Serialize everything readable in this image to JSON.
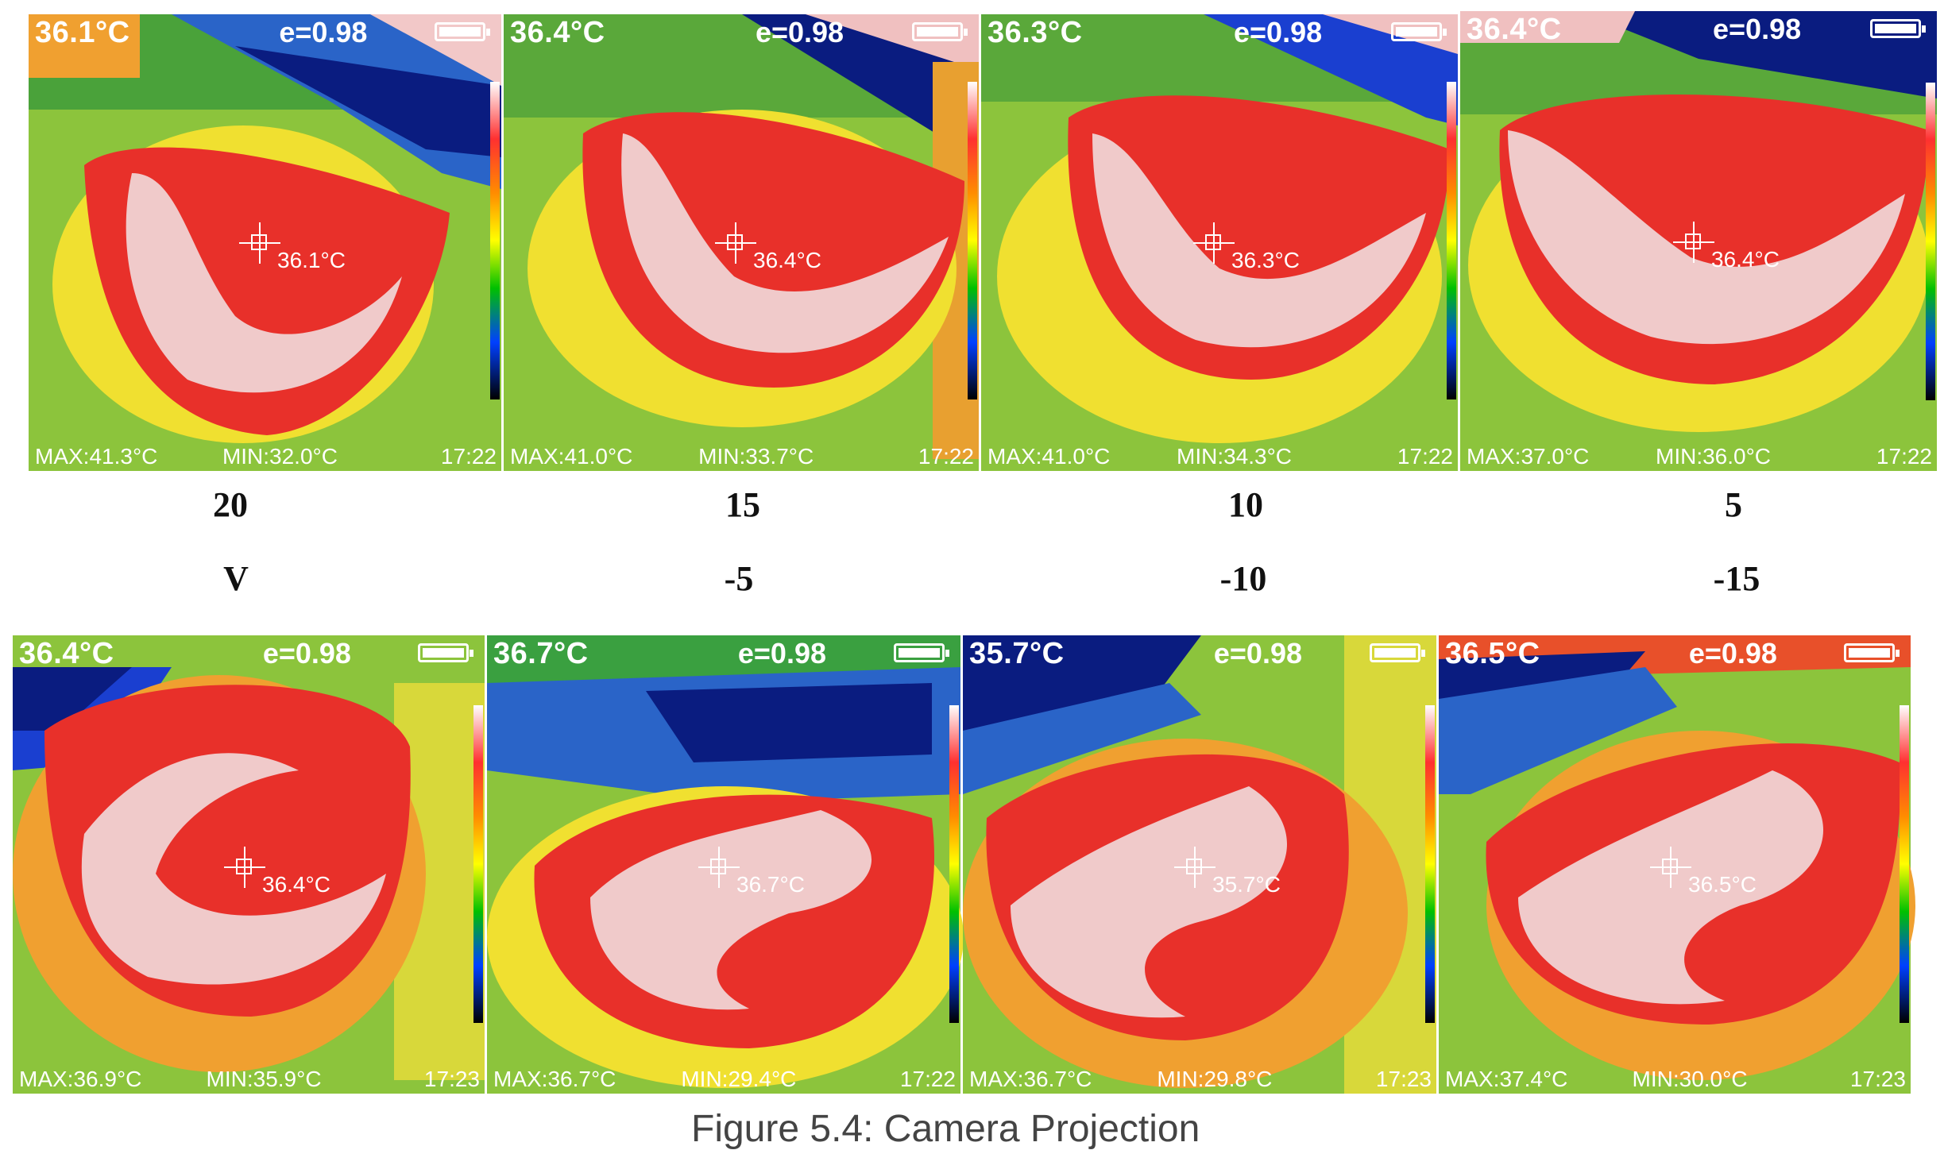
{
  "top_row": [
    {
      "temp": "36.1°C",
      "emissivity": "e=0.98",
      "center": "36.1°C",
      "max": "MAX:41.3°C",
      "min": "MIN:32.0°C",
      "time": "17:22",
      "label": "20"
    },
    {
      "temp": "36.4°C",
      "emissivity": "e=0.98",
      "center": "36.4°C",
      "max": "MAX:41.0°C",
      "min": "MIN:33.7°C",
      "time": "17:22",
      "label": "15"
    },
    {
      "temp": "36.3°C",
      "emissivity": "e=0.98",
      "center": "36.3°C",
      "max": "MAX:41.0°C",
      "min": "MIN:34.3°C",
      "time": "17:22",
      "label": "10"
    },
    {
      "temp": "36.4°C",
      "emissivity": "e=0.98",
      "center": "36.4°C",
      "max": "MAX:37.0°C",
      "min": "MIN:36.0°C",
      "time": "17:22",
      "label": "5"
    }
  ],
  "bottom_row": [
    {
      "temp": "36.4°C",
      "emissivity": "e=0.98",
      "center": "36.4°C",
      "max": "MAX:36.9°C",
      "min": "MIN:35.9°C",
      "time": "17:23",
      "label": "V"
    },
    {
      "temp": "36.7°C",
      "emissivity": "e=0.98",
      "center": "36.7°C",
      "max": "MAX:36.7°C",
      "min": "MIN:29.4°C",
      "time": "17:22",
      "label": "-5"
    },
    {
      "temp": "35.7°C",
      "emissivity": "e=0.98",
      "center": "35.7°C",
      "max": "MAX:36.7°C",
      "min": "MIN:29.8°C",
      "time": "17:23",
      "label": "-10"
    },
    {
      "temp": "36.5°C",
      "emissivity": "e=0.98",
      "center": "36.5°C",
      "max": "MAX:37.4°C",
      "min": "MIN:30.0°C",
      "time": "17:23",
      "label": "-15"
    }
  ],
  "caption_partial": "Figure 5.4: Camera Projection",
  "colors": {
    "hot": "#e8302a",
    "warm": "#ff7a1a",
    "mid": "#e8e02a",
    "cool": "#5fbf2a",
    "cold": "#1a3fd0",
    "hotspot": "#f2d8d8"
  }
}
